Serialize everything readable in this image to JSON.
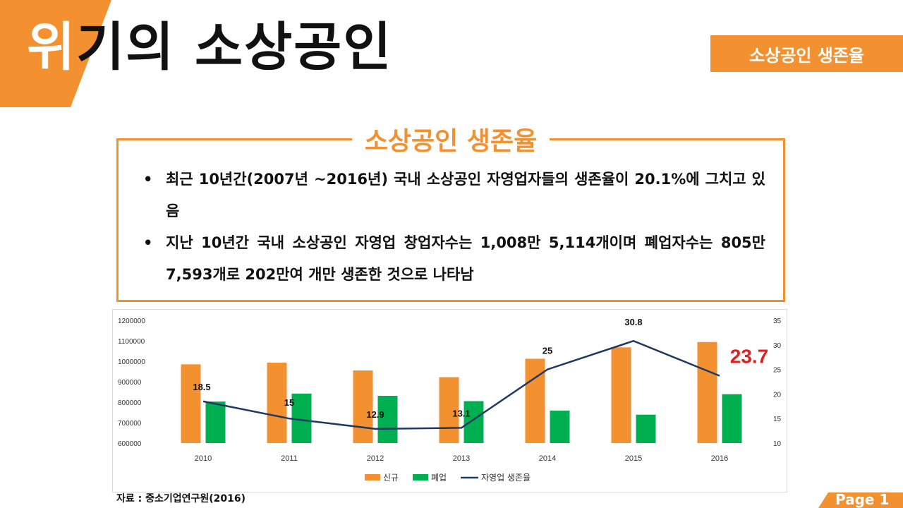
{
  "page_title": {
    "first_char": "위",
    "rest": "기의 소상공인"
  },
  "header_badge": "소상공인 생존율",
  "box": {
    "title": "소상공인 생존율",
    "bullets": [
      "최근 10년간(2007년 ~2016년) 국내 소상공인 자영업자들의 생존율이 20.1%에 그치고 있음",
      "지난 10년간 국내 소상공인 자영업 창업자수는 1,008만 5,114개이며 폐업자수는 805만 7,593개로 202만여 개만 생존한 것으로 나타남"
    ]
  },
  "colors": {
    "accent": "#f39130",
    "closed": "#00b050",
    "line": "#1f3864",
    "highlight": "#e02020"
  },
  "chart_data": {
    "type": "bar",
    "categories": [
      "2010",
      "2011",
      "2012",
      "2013",
      "2014",
      "2015",
      "2016"
    ],
    "series": [
      {
        "name": "신규",
        "type": "bar",
        "axis": "left",
        "values": [
          985000,
          993000,
          955000,
          922000,
          1012000,
          1068000,
          1094000
        ]
      },
      {
        "name": "폐업",
        "type": "bar",
        "axis": "left",
        "values": [
          803000,
          842000,
          831000,
          805000,
          759000,
          739000,
          839000
        ]
      },
      {
        "name": "자영업 생존율",
        "type": "line",
        "axis": "right",
        "values": [
          18.5,
          15,
          12.9,
          13.1,
          25,
          30.8,
          23.7
        ]
      }
    ],
    "data_labels": [
      "18.5",
      "15",
      "12.9",
      "13.1",
      "25",
      "30.8",
      "23.7"
    ],
    "y_left": {
      "min": 600000,
      "max": 1200000,
      "ticks": [
        600000,
        700000,
        800000,
        900000,
        1000000,
        1100000,
        1200000
      ]
    },
    "y_right": {
      "min": 10,
      "max": 35,
      "ticks": [
        10,
        15,
        20,
        25,
        30,
        35
      ]
    },
    "legend": [
      "신규",
      "폐업",
      "자영업 생존율"
    ],
    "legend_position": "bottom",
    "grid": false
  },
  "source": "자료 : 중소기업연구원(2016)",
  "page_label": "Page 1"
}
